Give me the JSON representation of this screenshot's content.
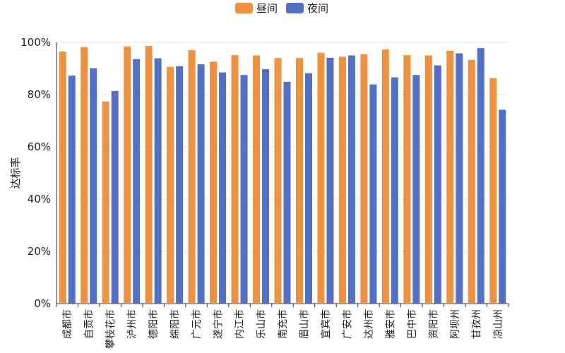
{
  "chart_data": {
    "type": "bar",
    "ylabel": "达标率",
    "ylim": [
      0,
      100
    ],
    "y_ticks": [
      "0%",
      "20%",
      "40%",
      "60%",
      "80%",
      "100%"
    ],
    "y_tick_values": [
      0,
      20,
      40,
      60,
      80,
      100
    ],
    "grid": true,
    "legend_position": "top-center",
    "categories": [
      "成都市",
      "自贡市",
      "攀枝花市",
      "泸州市",
      "德阳市",
      "绵阳市",
      "广元市",
      "遂宁市",
      "内江市",
      "乐山市",
      "南充市",
      "眉山市",
      "宜宾市",
      "广安市",
      "达州市",
      "雅安市",
      "巴中市",
      "资阳市",
      "阿坝州",
      "甘孜州",
      "凉山州"
    ],
    "series": [
      {
        "name": "昼间",
        "color": "#F0913F",
        "values": [
          96.5,
          98.2,
          77.4,
          98.4,
          98.6,
          90.6,
          97.0,
          92.6,
          95.1,
          95.0,
          94.0,
          94.0,
          96.0,
          94.5,
          95.5,
          97.3,
          95.1,
          95.0,
          96.8,
          93.3,
          86.3
        ]
      },
      {
        "name": "夜间",
        "color": "#5470C6",
        "values": [
          87.3,
          90.1,
          81.4,
          93.6,
          93.9,
          90.9,
          91.6,
          88.5,
          87.5,
          89.7,
          84.9,
          88.2,
          94.1,
          95.0,
          83.9,
          86.6,
          87.5,
          91.2,
          95.8,
          97.8,
          74.2
        ]
      }
    ]
  }
}
